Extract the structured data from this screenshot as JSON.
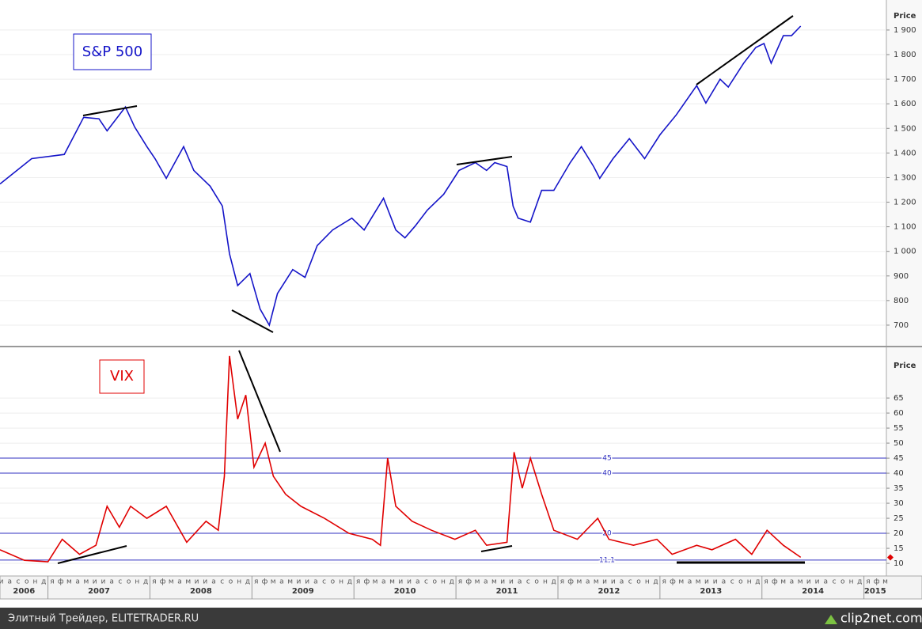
{
  "chart_data": [
    {
      "type": "line",
      "title": "S&P 500",
      "axis_label": "Price",
      "color": "#1414c8",
      "grid": true,
      "xlim": [
        2006.53,
        2015.22
      ],
      "ylim": [
        613,
        2022
      ],
      "yticks": [
        700,
        800,
        900,
        {
          "value": 1000,
          "label": "1 000"
        },
        {
          "value": 1100,
          "label": "1 100"
        },
        {
          "value": 1200,
          "label": "1 200"
        },
        {
          "value": 1300,
          "label": "1 300"
        },
        {
          "value": 1400,
          "label": "1 400"
        },
        {
          "value": 1500,
          "label": "1 500"
        },
        {
          "value": 1600,
          "label": "1 600"
        },
        {
          "value": 1700,
          "label": "1 700"
        },
        {
          "value": 1800,
          "label": "1 800"
        },
        {
          "value": 1900,
          "label": "1 900"
        }
      ],
      "x": [
        2006.53,
        2006.84,
        2007.16,
        2007.35,
        2007.5,
        2007.58,
        2007.76,
        2007.85,
        2007.97,
        2008.05,
        2008.16,
        2008.33,
        2008.43,
        2008.59,
        2008.71,
        2008.78,
        2008.86,
        2008.98,
        2009.08,
        2009.17,
        2009.25,
        2009.4,
        2009.52,
        2009.64,
        2009.79,
        2009.98,
        2010.1,
        2010.29,
        2010.41,
        2010.5,
        2010.6,
        2010.72,
        2010.88,
        2011.03,
        2011.19,
        2011.3,
        2011.38,
        2011.5,
        2011.56,
        2011.61,
        2011.73,
        2011.84,
        2011.96,
        2012.12,
        2012.23,
        2012.35,
        2012.41,
        2012.54,
        2012.7,
        2012.85,
        2013.0,
        2013.16,
        2013.36,
        2013.45,
        2013.59,
        2013.67,
        2013.82,
        2013.94,
        2014.02,
        2014.09,
        2014.21,
        2014.29,
        2014.38
      ],
      "values": [
        1274,
        1377,
        1394,
        1545,
        1539,
        1490,
        1587,
        1506,
        1426,
        1377,
        1297,
        1426,
        1329,
        1265,
        1184,
        990,
        861,
        910,
        765,
        700,
        829,
        926,
        894,
        1023,
        1087,
        1135,
        1087,
        1216,
        1087,
        1055,
        1103,
        1168,
        1232,
        1329,
        1361,
        1329,
        1361,
        1345,
        1184,
        1135,
        1119,
        1248,
        1248,
        1361,
        1426,
        1345,
        1297,
        1377,
        1458,
        1377,
        1474,
        1555,
        1674,
        1603,
        1700,
        1668,
        1765,
        1829,
        1845,
        1765,
        1877,
        1877,
        1916
      ]
    },
    {
      "type": "line",
      "title": "VIX",
      "axis_label": "Price",
      "color": "#e00000",
      "grid": true,
      "xlim": [
        2006.53,
        2015.22
      ],
      "ylim": [
        5.8,
        81.6
      ],
      "yticks": [
        10,
        15,
        20,
        25,
        30,
        35,
        40,
        45,
        50,
        55,
        60,
        65
      ],
      "xticks": [
        2006,
        2007,
        2008,
        2009,
        2010,
        2011,
        2012,
        2013,
        2014,
        2015
      ],
      "month_initials": [
        "я",
        "ф",
        "м",
        "а",
        "м",
        "и",
        "и",
        "а",
        "с",
        "о",
        "н",
        "д"
      ],
      "levels": [
        {
          "value": 45,
          "label": "45"
        },
        {
          "value": 40,
          "label": "40"
        },
        {
          "value": 20,
          "label": "20"
        },
        {
          "value": 11.1,
          "label": "11,1"
        }
      ],
      "x": [
        2006.53,
        2006.77,
        2007.0,
        2007.14,
        2007.31,
        2007.47,
        2007.58,
        2007.7,
        2007.81,
        2007.97,
        2008.16,
        2008.36,
        2008.55,
        2008.67,
        2008.73,
        2008.78,
        2008.86,
        2008.94,
        2009.02,
        2009.13,
        2009.21,
        2009.33,
        2009.48,
        2009.71,
        2009.95,
        2010.18,
        2010.26,
        2010.33,
        2010.41,
        2010.57,
        2010.76,
        2010.99,
        2011.19,
        2011.3,
        2011.5,
        2011.57,
        2011.65,
        2011.73,
        2011.84,
        2011.96,
        2012.19,
        2012.39,
        2012.5,
        2012.74,
        2012.97,
        2013.12,
        2013.36,
        2013.51,
        2013.74,
        2013.9,
        2014.05,
        2014.21,
        2014.38
      ],
      "values": [
        14.5,
        11,
        10.5,
        18,
        13,
        16,
        29,
        22,
        29,
        25,
        29,
        17,
        24,
        21,
        39,
        79,
        58,
        66,
        42,
        50,
        39,
        33,
        29,
        25,
        20,
        18,
        16,
        45,
        29,
        24,
        21,
        18,
        21,
        16,
        17,
        47,
        35,
        45,
        33,
        21,
        18,
        25,
        18,
        16,
        18,
        13,
        16,
        14.5,
        18,
        13,
        21,
        16,
        12
      ]
    }
  ],
  "footer": {
    "left": "Элитный Трейдер, ELITETRADER.RU",
    "right": "clip2net.com"
  }
}
